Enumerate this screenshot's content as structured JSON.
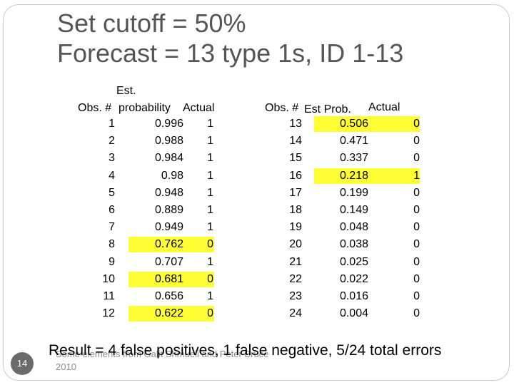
{
  "title": {
    "line1": "Set cutoff = 50%",
    "line2": "Forecast = 13 type 1s, ID 1-13"
  },
  "left_table": {
    "headers": {
      "obs_top": "Est.",
      "obs": "Obs. #",
      "prob": "probability",
      "actual": "Actual"
    },
    "rows": [
      {
        "obs": "1",
        "prob": "0.996",
        "actual": "1",
        "highlight": false
      },
      {
        "obs": "2",
        "prob": "0.988",
        "actual": "1",
        "highlight": false
      },
      {
        "obs": "3",
        "prob": "0.984",
        "actual": "1",
        "highlight": false
      },
      {
        "obs": "4",
        "prob": "0.98",
        "actual": "1",
        "highlight": false
      },
      {
        "obs": "5",
        "prob": "0.948",
        "actual": "1",
        "highlight": false
      },
      {
        "obs": "6",
        "prob": "0.889",
        "actual": "1",
        "highlight": false
      },
      {
        "obs": "7",
        "prob": "0.949",
        "actual": "1",
        "highlight": false
      },
      {
        "obs": "8",
        "prob": "0.762",
        "actual": "0",
        "highlight": true
      },
      {
        "obs": "9",
        "prob": "0.707",
        "actual": "1",
        "highlight": false
      },
      {
        "obs": "10",
        "prob": "0.681",
        "actual": "0",
        "highlight": true
      },
      {
        "obs": "11",
        "prob": "0.656",
        "actual": "1",
        "highlight": false
      },
      {
        "obs": "12",
        "prob": "0.622",
        "actual": "0",
        "highlight": true
      }
    ]
  },
  "right_table": {
    "headers": {
      "obs": "Obs. #",
      "prob": "Est Prob.",
      "actual": "Actual"
    },
    "rows": [
      {
        "obs": "13",
        "prob": "0.506",
        "actual": "0",
        "highlight": true
      },
      {
        "obs": "14",
        "prob": "0.471",
        "actual": "0",
        "highlight": false
      },
      {
        "obs": "15",
        "prob": "0.337",
        "actual": "0",
        "highlight": false
      },
      {
        "obs": "16",
        "prob": "0.218",
        "actual": "1",
        "highlight": true
      },
      {
        "obs": "17",
        "prob": "0.199",
        "actual": "0",
        "highlight": false
      },
      {
        "obs": "18",
        "prob": "0.149",
        "actual": "0",
        "highlight": false
      },
      {
        "obs": "19",
        "prob": "0.048",
        "actual": "0",
        "highlight": false
      },
      {
        "obs": "20",
        "prob": "0.038",
        "actual": "0",
        "highlight": false
      },
      {
        "obs": "21",
        "prob": "0.025",
        "actual": "0",
        "highlight": false
      },
      {
        "obs": "22",
        "prob": "0.022",
        "actual": "0",
        "highlight": false
      },
      {
        "obs": "23",
        "prob": "0.016",
        "actual": "0",
        "highlight": false
      },
      {
        "obs": "24",
        "prob": "0.004",
        "actual": "0",
        "highlight": false
      }
    ]
  },
  "highlight_color": "#ffff33",
  "result_text": "Result = 4 false positives, 1 false negative, 5/24 total errors",
  "footer_text": "Some elements from Galit Shmueli and Peter Bruce 2010",
  "slide_number": "14"
}
